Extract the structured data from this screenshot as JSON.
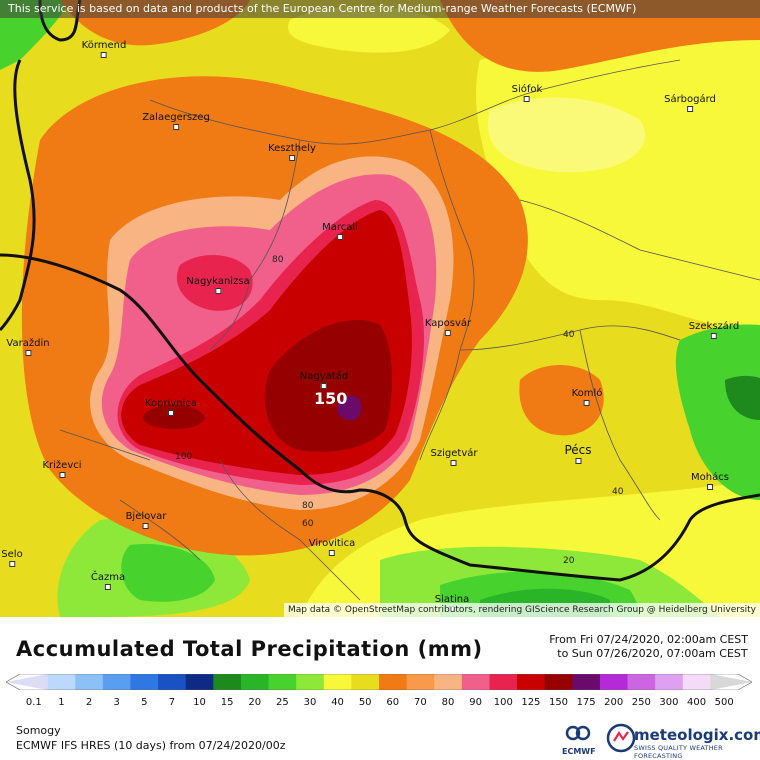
{
  "notice": "This service is based on data and products of the European Centre for Medium-range Weather Forecasts (ECMWF)",
  "attribution": "Map data © OpenStreetMap contributors, rendering GIScience Research Group @ Heidelberg University",
  "cities": {
    "kormend": "Körmend",
    "siofok": "Siófok",
    "sarbogard": "Sárbogárd",
    "zalaegerszeg": "Zalaegerszeg",
    "keszthely": "Keszthely",
    "marcali": "Marcali",
    "nagykanizsa": "Nagykanizsa",
    "kaposvar": "Kaposvár",
    "szekszard": "Szekszárd",
    "varazdin": "Varaždin",
    "nagyatad": "Nagyatád",
    "komlo": "Komló",
    "koprivnica": "Koprivnica",
    "pecs": "Pécs",
    "szigetvar": "Szigetvár",
    "krizevci": "Križevci",
    "mohacs": "Mohács",
    "bjelovar": "Bjelovar",
    "virovitica": "Virovitica",
    "selo": "Selo",
    "cazma": "Čazma",
    "slatina": "Slatina"
  },
  "contour_labels": {
    "c80": "80",
    "c40a": "40",
    "c100": "100",
    "c80b": "80",
    "c60": "60",
    "c40b": "40",
    "c20": "20"
  },
  "max_label": "150",
  "legend": {
    "title": "Accumulated Total Precipitation (mm)",
    "period_from": "From Fri 07/24/2020, 02:00am CEST",
    "period_to": "to Sun 07/26/2020, 07:00am CEST",
    "ticks": [
      "0.1",
      "1",
      "2",
      "3",
      "5",
      "7",
      "10",
      "15",
      "20",
      "25",
      "30",
      "40",
      "50",
      "60",
      "70",
      "80",
      "90",
      "100",
      "125",
      "150",
      "175",
      "200",
      "250",
      "300",
      "400",
      "500"
    ],
    "colors": [
      "#dcdcf4",
      "#bcd8fa",
      "#8ec0f8",
      "#5a9ef0",
      "#2e78e4",
      "#1a52c4",
      "#0e2a84",
      "#1e8a1e",
      "#2ab428",
      "#48d22e",
      "#8ee83a",
      "#f8f83a",
      "#e8dc1e",
      "#f07a14",
      "#f89a4a",
      "#f8b482",
      "#f0608a",
      "#e8244e",
      "#c80000",
      "#960000",
      "#6a0a6a",
      "#b42ad8",
      "#cc66e0",
      "#dea0f0",
      "#f4dcf8",
      "#d8d8d8"
    ],
    "region": "Somogy",
    "model": "ECMWF IFS HRES (10 days) from 07/24/2020/00z",
    "ecmwf_logo": "ECMWF",
    "brand": "meteologix.com",
    "tagline": "SWISS QUALITY WEATHER FORECASTING"
  }
}
